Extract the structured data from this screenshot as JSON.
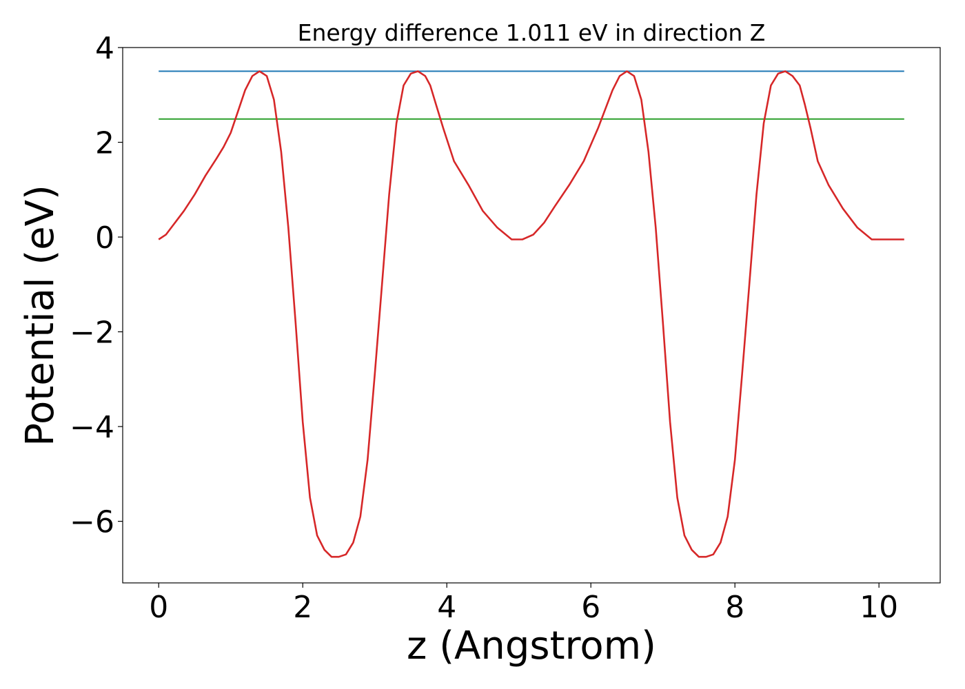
{
  "chart_data": {
    "type": "line",
    "title": "Energy difference 1.011 eV in direction Z",
    "xlabel": "z (Angstrom)",
    "ylabel": "Potential (eV)",
    "xlim": [
      -0.5,
      10.85
    ],
    "ylim": [
      -7.3,
      4.0
    ],
    "xticks": [
      0,
      2,
      4,
      6,
      8,
      10
    ],
    "yticks": [
      4,
      2,
      0,
      -2,
      -4,
      -6
    ],
    "xtick_labels": [
      "0",
      "2",
      "4",
      "6",
      "8",
      "10"
    ],
    "ytick_labels": [
      "4",
      "2",
      "0",
      "−2",
      "−4",
      "−6"
    ],
    "grid": false,
    "series": [
      {
        "color": "#1f77b4",
        "x": [
          0,
          10.35
        ],
        "y": [
          3.5,
          3.5
        ]
      },
      {
        "color": "#2ca02c",
        "x": [
          0,
          10.35
        ],
        "y": [
          2.49,
          2.49
        ]
      },
      {
        "color": "#d62728",
        "x": [
          0,
          0.1,
          0.2,
          0.35,
          0.5,
          0.65,
          0.8,
          0.9,
          1.0,
          1.1,
          1.2,
          1.3,
          1.4,
          1.5,
          1.6,
          1.7,
          1.8,
          1.9,
          2.0,
          2.1,
          2.2,
          2.3,
          2.4,
          2.5,
          2.6,
          2.7,
          2.8,
          2.9,
          3.0,
          3.1,
          3.2,
          3.3,
          3.4,
          3.5,
          3.6,
          3.7,
          3.77,
          3.85,
          3.95,
          4.1,
          4.3,
          4.5,
          4.7,
          4.9,
          5.05,
          5.2,
          5.35,
          5.5,
          5.7,
          5.9,
          6.1,
          6.3,
          6.4,
          6.5,
          6.6,
          6.7,
          6.8,
          6.9,
          7.0,
          7.1,
          7.2,
          7.3,
          7.4,
          7.5,
          7.6,
          7.7,
          7.8,
          7.9,
          8.0,
          8.1,
          8.2,
          8.3,
          8.4,
          8.5,
          8.6,
          8.7,
          8.8,
          8.9,
          8.97,
          9.05,
          9.15,
          9.3,
          9.5,
          9.7,
          9.9,
          10.1,
          10.25,
          10.35
        ],
        "y": [
          -0.05,
          0.05,
          0.25,
          0.55,
          0.9,
          1.3,
          1.65,
          1.9,
          2.2,
          2.65,
          3.1,
          3.4,
          3.5,
          3.4,
          2.9,
          1.8,
          0.2,
          -1.8,
          -3.9,
          -5.5,
          -6.3,
          -6.6,
          -6.75,
          -6.75,
          -6.7,
          -6.45,
          -5.9,
          -4.7,
          -2.9,
          -1.0,
          0.9,
          2.4,
          3.2,
          3.45,
          3.5,
          3.4,
          3.2,
          2.8,
          2.3,
          1.6,
          1.1,
          0.55,
          0.2,
          -0.05,
          -0.05,
          0.05,
          0.3,
          0.65,
          1.1,
          1.6,
          2.3,
          3.1,
          3.4,
          3.5,
          3.4,
          2.9,
          1.8,
          0.2,
          -1.8,
          -3.9,
          -5.5,
          -6.3,
          -6.6,
          -6.75,
          -6.75,
          -6.7,
          -6.45,
          -5.9,
          -4.7,
          -2.9,
          -1.0,
          0.9,
          2.4,
          3.2,
          3.45,
          3.5,
          3.4,
          3.2,
          2.8,
          2.3,
          1.6,
          1.1,
          0.6,
          0.2,
          -0.05,
          -0.05,
          -0.05,
          -0.05
        ]
      }
    ]
  }
}
